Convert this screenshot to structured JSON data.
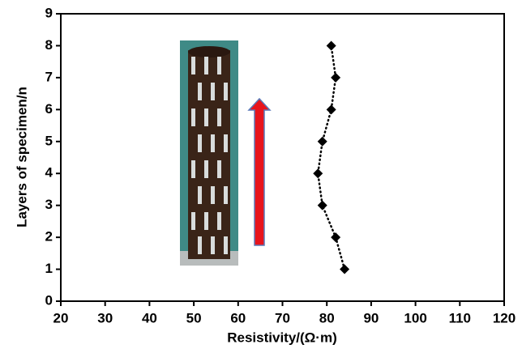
{
  "chart_data": {
    "type": "line",
    "x_label": "Resistivity/(Ω·m)",
    "y_label": "Layers of specimen/n",
    "x": [
      84,
      82,
      79,
      78,
      79,
      81,
      82,
      81
    ],
    "values": [
      1,
      2,
      3,
      4,
      5,
      6,
      7,
      8
    ],
    "color": "#000000",
    "line_style": "dotted",
    "marker": "diamond",
    "xlim": [
      20,
      120
    ],
    "xticks": [
      20,
      30,
      40,
      50,
      60,
      70,
      80,
      90,
      100,
      110,
      120
    ],
    "ylim": [
      0,
      9
    ],
    "yticks": [
      0,
      1,
      2,
      3,
      4,
      5,
      6,
      7,
      8,
      9
    ],
    "grid": false
  }
}
